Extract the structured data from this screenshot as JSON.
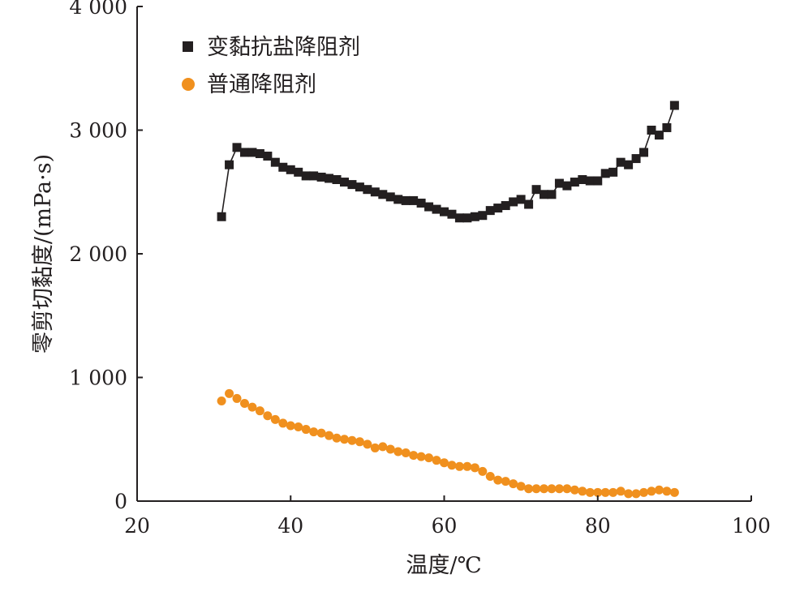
{
  "chart_data": {
    "type": "scatter",
    "xlabel": "温度/℃",
    "ylabel": "零剪切黏度/(mPa·s)",
    "xlim": [
      20,
      100
    ],
    "ylim": [
      0,
      4000
    ],
    "x_ticks": [
      20,
      40,
      60,
      80,
      100
    ],
    "x_tick_labels": [
      "20",
      "40",
      "60",
      "80",
      "100"
    ],
    "y_ticks": [
      0,
      1000,
      2000,
      3000,
      4000
    ],
    "y_tick_labels": [
      "0",
      "1 000",
      "2 000",
      "3 000",
      "4 000"
    ],
    "grid": false,
    "legend_position": "top-left",
    "series": [
      {
        "name": "变黏抗盐降阻剂",
        "marker": "square",
        "color": "#231f20",
        "line": true,
        "x": [
          31,
          32,
          33,
          34,
          35,
          36,
          37,
          38,
          39,
          40,
          41,
          42,
          43,
          44,
          45,
          46,
          47,
          48,
          49,
          50,
          51,
          52,
          53,
          54,
          55,
          56,
          57,
          58,
          59,
          60,
          61,
          62,
          63,
          64,
          65,
          66,
          67,
          68,
          69,
          70,
          71,
          72,
          73,
          74,
          75,
          76,
          77,
          78,
          79,
          80,
          81,
          82,
          83,
          84,
          85,
          86,
          87,
          88,
          89,
          90
        ],
        "y": [
          2300,
          2720,
          2860,
          2820,
          2820,
          2810,
          2790,
          2740,
          2700,
          2680,
          2660,
          2630,
          2630,
          2620,
          2610,
          2600,
          2580,
          2560,
          2540,
          2520,
          2500,
          2480,
          2460,
          2440,
          2430,
          2430,
          2410,
          2380,
          2360,
          2340,
          2320,
          2290,
          2290,
          2300,
          2310,
          2350,
          2370,
          2390,
          2420,
          2440,
          2400,
          2520,
          2480,
          2480,
          2570,
          2550,
          2580,
          2600,
          2590,
          2590,
          2650,
          2660,
          2740,
          2720,
          2770,
          2820,
          3000,
          2960,
          3020,
          3200
        ]
      },
      {
        "name": "普通降阻剂",
        "marker": "circle",
        "color": "#f0901e",
        "line": false,
        "x": [
          31,
          32,
          33,
          34,
          35,
          36,
          37,
          38,
          39,
          40,
          41,
          42,
          43,
          44,
          45,
          46,
          47,
          48,
          49,
          50,
          51,
          52,
          53,
          54,
          55,
          56,
          57,
          58,
          59,
          60,
          61,
          62,
          63,
          64,
          65,
          66,
          67,
          68,
          69,
          70,
          71,
          72,
          73,
          74,
          75,
          76,
          77,
          78,
          79,
          80,
          81,
          82,
          83,
          84,
          85,
          86,
          87,
          88,
          89,
          90
        ],
        "y": [
          810,
          870,
          830,
          790,
          760,
          730,
          690,
          660,
          630,
          610,
          600,
          580,
          560,
          550,
          530,
          510,
          500,
          490,
          480,
          460,
          430,
          440,
          420,
          400,
          390,
          370,
          360,
          350,
          330,
          310,
          290,
          280,
          280,
          270,
          240,
          200,
          170,
          160,
          140,
          120,
          100,
          100,
          100,
          100,
          100,
          100,
          90,
          80,
          70,
          70,
          70,
          70,
          80,
          60,
          60,
          70,
          80,
          90,
          80,
          70
        ]
      }
    ]
  }
}
